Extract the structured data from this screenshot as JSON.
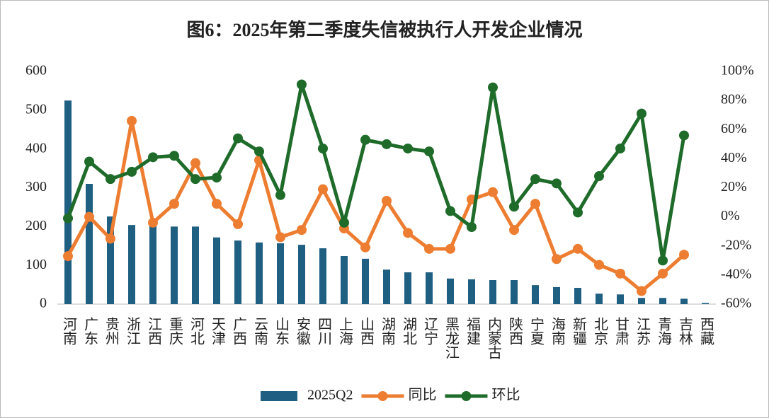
{
  "chart_data": {
    "type": "bar_line_combo",
    "title": "图6：2025年第二季度失信被执行人开发企业情况",
    "categories": [
      "河南",
      "广东",
      "贵州",
      "浙江",
      "江西",
      "重庆",
      "河北",
      "天津",
      "广西",
      "云南",
      "山东",
      "安徽",
      "四川",
      "上海",
      "山西",
      "湖南",
      "湖北",
      "辽宁",
      "黑龙江",
      "福建",
      "内蒙古",
      "陕西",
      "宁夏",
      "海南",
      "新疆",
      "北京",
      "甘肃",
      "江苏",
      "青海",
      "吉林",
      "西藏"
    ],
    "series": [
      {
        "name": "2025Q2",
        "kind": "bar",
        "color": "#1f5f82",
        "values": [
          525,
          310,
          226,
          204,
          201,
          200,
          200,
          172,
          164,
          159,
          157,
          153,
          144,
          124,
          117,
          89,
          82,
          82,
          66,
          64,
          62,
          62,
          49,
          44,
          42,
          27,
          25,
          16,
          16,
          14,
          3
        ]
      },
      {
        "name": "同比",
        "kind": "line",
        "axis": "y2",
        "color": "#ed7d31",
        "values": [
          -27,
          0,
          -15,
          66,
          -4,
          9,
          37,
          9,
          -5,
          39,
          -14,
          -9,
          19,
          -8,
          -21,
          11,
          -11,
          -22,
          -22,
          12,
          17,
          -9,
          9,
          -29,
          -22,
          -33,
          -39,
          -51,
          -39,
          -26,
          null
        ]
      },
      {
        "name": "环比",
        "kind": "line",
        "axis": "y2",
        "color": "#1e6b2a",
        "values": [
          -1,
          38,
          26,
          31,
          41,
          42,
          26,
          27,
          54,
          45,
          15,
          91,
          47,
          -4,
          53,
          50,
          47,
          45,
          4,
          -7,
          89,
          7,
          26,
          23,
          3,
          28,
          47,
          71,
          -30,
          56,
          null
        ]
      }
    ],
    "ylim": [
      0,
      600
    ],
    "yticks": [
      0,
      100,
      200,
      300,
      400,
      500,
      600
    ],
    "y2lim": [
      -60,
      100
    ],
    "y2ticks": [
      {
        "value": -60,
        "label": "-60%"
      },
      {
        "value": -40,
        "label": "-40%"
      },
      {
        "value": -20,
        "label": "-20%"
      },
      {
        "value": 0,
        "label": "0%"
      },
      {
        "value": 20,
        "label": "20%"
      },
      {
        "value": 40,
        "label": "40%"
      },
      {
        "value": 60,
        "label": "60%"
      },
      {
        "value": 80,
        "label": "80%"
      },
      {
        "value": 100,
        "label": "100%"
      }
    ],
    "legend": "bottom"
  }
}
